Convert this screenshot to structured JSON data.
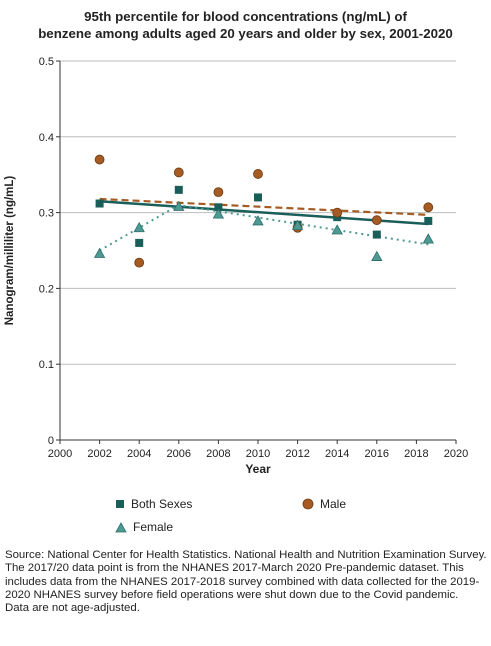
{
  "title_lines": [
    "95th percentile for blood concentrations (ng/mL) of",
    "benzene among adults aged 20 years and older by sex, 2001-2020"
  ],
  "legend_items": [
    {
      "label": "Both Sexes",
      "marker": "square",
      "color": "#1a5e5a"
    },
    {
      "label": "Male",
      "marker": "circle",
      "color": "#a55b22"
    },
    {
      "label": "Female",
      "marker": "triangle",
      "color": "#4d9a94"
    }
  ],
  "footnotes": [
    "Source: National Center for Health Statistics. National Health and Nutrition Examination Survey.",
    "The 2017/20 data point is from the NHANES 2017-March 2020 Pre-pandemic dataset. This includes data from the NHANES 2017-2018 survey combined with data collected for the 2019-2020 NHANES survey before field operations were shut down due to the Covid pandemic.",
    "Data are not age-adjusted."
  ],
  "chart_data": {
    "type": "scatter",
    "title": "95th percentile for blood concentrations (ng/mL) of benzene among adults aged 20 years and older by sex, 2001-2020",
    "xlabel": "Year",
    "ylabel": "Nanogram/milliliter (ng/mL)",
    "xlim": [
      2000,
      2020
    ],
    "ylim": [
      0,
      0.5
    ],
    "xticks": [
      "2000",
      "2002",
      "2004",
      "2006",
      "2008",
      "2010",
      "2012",
      "2014",
      "2016",
      "2018",
      "2020"
    ],
    "yticks": [
      "0",
      "0.1",
      "0.2",
      "0.3",
      "0.4",
      "0.5"
    ],
    "grid": "horizontal",
    "legend_position": "bottom",
    "series": [
      {
        "name": "Both Sexes",
        "marker": "square",
        "color": "#1a5e5a",
        "x": [
          2002,
          2004,
          2006,
          2008,
          2010,
          2012,
          2014,
          2016,
          2018.6
        ],
        "y": [
          0.312,
          0.26,
          0.33,
          0.307,
          0.32,
          0.284,
          0.294,
          0.271,
          0.289
        ],
        "trend": {
          "style": "solid",
          "x": [
            2002,
            2018.6
          ],
          "y": [
            0.315,
            0.285
          ]
        }
      },
      {
        "name": "Male",
        "marker": "circle",
        "color": "#a55b22",
        "x": [
          2002,
          2004,
          2006,
          2008,
          2010,
          2012,
          2014,
          2016,
          2018.6
        ],
        "y": [
          0.37,
          0.234,
          0.353,
          0.327,
          0.351,
          0.28,
          0.3,
          0.29,
          0.307
        ],
        "trend": {
          "style": "dashed",
          "x": [
            2002,
            2018.6
          ],
          "y": [
            0.318,
            0.297
          ]
        }
      },
      {
        "name": "Female",
        "marker": "triangle",
        "color": "#4d9a94",
        "x": [
          2002,
          2004,
          2006,
          2008,
          2010,
          2012,
          2014,
          2016,
          2018.6
        ],
        "y": [
          0.246,
          0.28,
          0.308,
          0.298,
          0.289,
          0.283,
          0.277,
          0.242,
          0.265
        ],
        "trend": {
          "style": "dotted",
          "x": [
            2002,
            2006,
            2018.6
          ],
          "y": [
            0.25,
            0.31,
            0.258
          ]
        }
      }
    ]
  }
}
